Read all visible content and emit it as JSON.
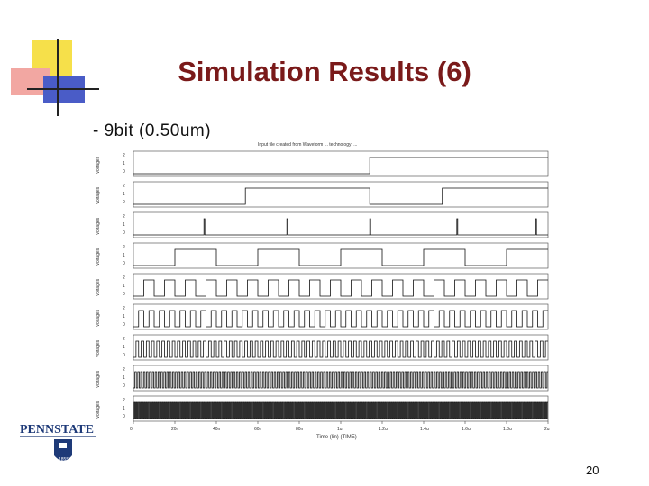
{
  "slide": {
    "title": "Simulation Results (6)",
    "subtitle": "- 9bit (0.50um)",
    "page_number": "20",
    "logo_text": "PENNSTATE",
    "colors": {
      "title": "#7a1a1a",
      "logo": "#1e3a78",
      "waveform": "#111111"
    }
  },
  "chart_data": {
    "type": "line",
    "title": "Input file created from Waveform ... technology: ...",
    "xlabel": "Time (lin) (TIME)",
    "ylabel": "Voltages",
    "x_tick_labels": [
      "0",
      "20n",
      "40n",
      "60n",
      "80n",
      "1u",
      "1.2u",
      "1.4u",
      "1.6u",
      "1.8u",
      "2u"
    ],
    "panels": [
      {
        "y_ticks": [
          "2",
          "1",
          "0"
        ],
        "transitions": [
          0.57
        ],
        "start": 0
      },
      {
        "y_ticks": [
          "2",
          "1",
          "0"
        ],
        "transitions": [
          0.27,
          0.57,
          0.745
        ],
        "start": 0
      },
      {
        "y_ticks": [
          "2",
          "1",
          "0"
        ],
        "pulses_per_unit": 0,
        "spikes": [
          0.17,
          0.37,
          0.57,
          0.78,
          0.97
        ]
      },
      {
        "y_ticks": [
          "2",
          "1",
          "0"
        ],
        "period": 0.2,
        "start": 0
      },
      {
        "y_ticks": [
          "2",
          "1",
          "0"
        ],
        "period": 0.05,
        "start": 0
      },
      {
        "y_ticks": [
          "2",
          "1",
          "0"
        ],
        "period": 0.025,
        "start": 0
      },
      {
        "y_ticks": [
          "2",
          "1",
          "0"
        ],
        "period": 0.0125,
        "start": 0
      },
      {
        "y_ticks": [
          "2",
          "1",
          "0"
        ],
        "period": 0.007,
        "start": 0
      },
      {
        "y_ticks": [
          "2",
          "1",
          "0"
        ],
        "period": 0.004,
        "start": 0
      }
    ],
    "x_range": [
      0,
      2
    ],
    "x_unit": "us",
    "y_range": [
      0,
      2
    ],
    "grid": false,
    "legend": "none"
  }
}
